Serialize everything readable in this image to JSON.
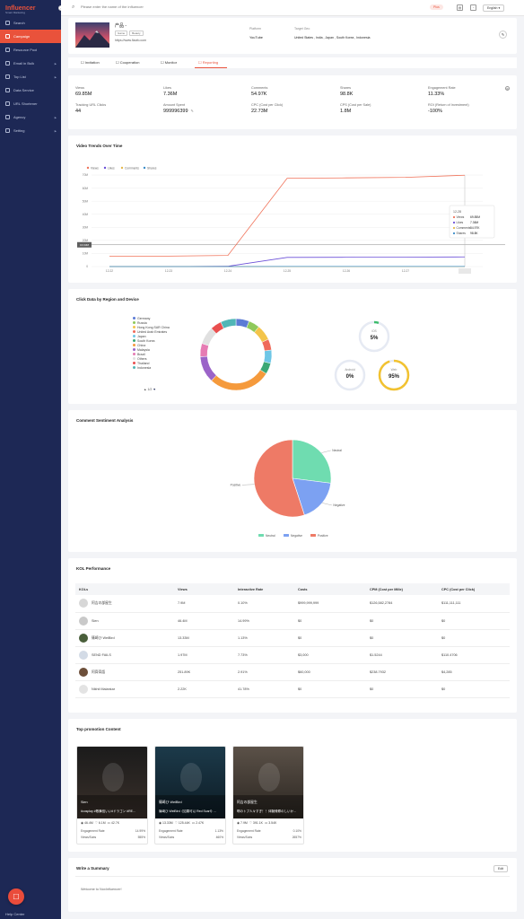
{
  "app": {
    "logo": "Influencer",
    "logo_sub": "Smart Marketing"
  },
  "sidebar": {
    "items": [
      {
        "label": "Search",
        "icon": "search-icon"
      },
      {
        "label": "Campaign",
        "icon": "megaphone-icon",
        "active": true
      },
      {
        "label": "Resource Pool",
        "icon": "heart-icon"
      },
      {
        "label": "Email in Bulk",
        "icon": "mail-icon",
        "chevron": true
      },
      {
        "label": "Top List",
        "icon": "list-icon",
        "chevron": true
      },
      {
        "label": "Data Service",
        "icon": "chart-icon"
      },
      {
        "label": "URL Shortener",
        "icon": "link-icon"
      },
      {
        "label": "Agency",
        "icon": "briefcase-icon",
        "chevron": true
      },
      {
        "label": "Setting",
        "icon": "gear-icon",
        "chevron": true
      }
    ],
    "help_center": "Help Center"
  },
  "topbar": {
    "search_placeholder": "Please enter the name of the influencer",
    "plan": "Plus",
    "lang": "English"
  },
  "product": {
    "name": "产品 -",
    "tags": [
      "Game",
      "Beauty"
    ],
    "url": "https://www.fiaofo.com",
    "platform_label": "Platform",
    "platform": "YouTube",
    "target_label": "Target Geo",
    "target": "United States ,  India ,  Japan ,  South Korea ,  Indonesia"
  },
  "tabs": [
    "Invitation",
    "Cooperation",
    "Monitor",
    "Reporting"
  ],
  "metrics": [
    {
      "label": "Views",
      "value": "69.85M"
    },
    {
      "label": "Likes",
      "value": "7.36M"
    },
    {
      "label": "Comments",
      "value": "54.97K"
    },
    {
      "label": "Shares",
      "value": "98.8K"
    },
    {
      "label": "Engagement Rate",
      "value": "11.33%"
    },
    {
      "label": "Tracking URL Clicks",
      "value": "44"
    },
    {
      "label": "Amount Spent",
      "value": "999996399"
    },
    {
      "label": "CPC (Cost per Click)",
      "value": "22.73M"
    },
    {
      "label": "CPS (Cost per Sale)",
      "value": "1.8M"
    },
    {
      "label": "ROI (Return of Investment)",
      "value": "-100%"
    }
  ],
  "trend": {
    "title": "Video Trends Over Time",
    "legend": [
      "Views",
      "Likes",
      "Comments",
      "Shares"
    ],
    "y_ticks": [
      "70M",
      "60M",
      "50M",
      "40M",
      "30M",
      "20M",
      "10M",
      "0"
    ],
    "x_ticks": [
      "12-22",
      "12-23",
      "12-24",
      "12-25",
      "12-26",
      "12-27",
      "12-28"
    ],
    "marker": "16.63M",
    "tooltip": {
      "date": "12-28",
      "rows": [
        {
          "label": "Views",
          "value": "69.85M"
        },
        {
          "label": "Likes",
          "value": "7.36M"
        },
        {
          "label": "Comments",
          "value": "54.97K"
        },
        {
          "label": "Shares",
          "value": "98.8K"
        }
      ]
    },
    "colors": {
      "Views": "#f0735a",
      "Likes": "#6b4fd8",
      "Comments": "#e4b84a",
      "Shares": "#3a8cc8"
    }
  },
  "chart_data": {
    "type": "line",
    "x": [
      "12-22",
      "12-23",
      "12-24",
      "12-25",
      "12-26",
      "12-27",
      "12-28"
    ],
    "ylim": [
      0,
      70000000
    ],
    "series": [
      {
        "name": "Views",
        "values": [
          8000000,
          8000000,
          8500000,
          67500000,
          67800000,
          68200000,
          69850000
        ]
      },
      {
        "name": "Likes",
        "values": [
          0,
          0,
          200000,
          7000000,
          7100000,
          7200000,
          7360000
        ]
      },
      {
        "name": "Comments",
        "values": [
          0,
          0,
          1000,
          50000,
          52000,
          53000,
          54970
        ]
      },
      {
        "name": "Shares",
        "values": [
          0,
          0,
          2000,
          90000,
          94000,
          96000,
          98800
        ]
      }
    ]
  },
  "region": {
    "title": "Click Data by Region and Device",
    "countries": [
      "Germany",
      "Russia",
      "Hong Kong SAR China",
      "United Arab Emirates",
      "Japan",
      "South Korea",
      "China",
      "Malaysia",
      "Brazil",
      "Others",
      "Thailand",
      "Indonesia"
    ],
    "page": "1/2",
    "colors": [
      "#5b7bd5",
      "#8fc95a",
      "#f3c44a",
      "#ef6a5a",
      "#6ec6e6",
      "#3aa875",
      "#f59a3c",
      "#9b63c8",
      "#e67bb3",
      "#e0e0e0",
      "#e94f4f",
      "#50b6b6"
    ],
    "donut": [
      6,
      5,
      7,
      5,
      6,
      5,
      28,
      12,
      6,
      8,
      5,
      7
    ],
    "devices": [
      {
        "name": "iOS",
        "value": "5%",
        "pct": 5,
        "color": "#3cbc6c"
      },
      {
        "name": "Android",
        "value": "0%",
        "pct": 0,
        "color": "#3a6fd0"
      },
      {
        "name": "Web",
        "value": "95%",
        "pct": 95,
        "color": "#f2c230"
      }
    ]
  },
  "sentiment": {
    "title": "Comment Sentiment Analysis",
    "slices": [
      {
        "label": "Neutral",
        "value": 27,
        "color": "#6fdcb0"
      },
      {
        "label": "Negative",
        "value": 18,
        "color": "#7ca1f2"
      },
      {
        "label": "Positive",
        "value": 55,
        "color": "#ee7a66"
      }
    ]
  },
  "kol": {
    "title": "KOL Performance",
    "headers": [
      "KOLs",
      "Views",
      "Interactive Rate",
      "Costs",
      "CPM (Cost per Mille)",
      "CPC (Cost per Click)"
    ],
    "rows": [
      [
        "阿吉の部屋生",
        "7.9M",
        "0.10%",
        "$999,999,999",
        "$126,582,2784",
        "$111,111,111"
      ],
      [
        "Sien",
        "46.4M",
        "14.99%",
        "$0",
        "$0",
        "$0"
      ],
      [
        "篠崎ひ WeiBird",
        "13.33M",
        "1.13%",
        "$0",
        "$0",
        "$0"
      ],
      [
        "SEND FAILS",
        "1.97M",
        "7.73%",
        "$3,000",
        "$1.5244",
        "$110.4706"
      ],
      [
        "阿齊齊語",
        "251.89K",
        "2.91%",
        "$60,000",
        "$238.7932",
        "$4,285"
      ],
      [
        "Nikhil Malankar",
        "2.22K",
        "41.78%",
        "$0",
        "$0",
        "$0"
      ]
    ]
  },
  "promo": {
    "title": "Top promotion Content",
    "items": [
      {
        "name": "Sien",
        "caption": "#cosplay #歌舞伎いい#ドラゴン #RE...",
        "views": "46.4M",
        "likes": "6.1M",
        "comments": "42.7K",
        "er": "14.99%",
        "vs": "555%"
      },
      {
        "name": "篠崎ひ WeiBird",
        "caption": "篠崎ひ WeiBird《如果可以 Red Scarf》...",
        "views": "13.33M",
        "likes": "125.44K",
        "comments": "2.47K",
        "er": "1.13%",
        "vs": "460%"
      },
      {
        "name": "阿吉の部屋生",
        "caption": "啊のトプ人々すぎ！！体験帰郷のしいか...",
        "views": "7.9M",
        "likes": "391.1K",
        "comments": "3.54K",
        "er": "0.10%",
        "vs": "2657%"
      }
    ],
    "er_label": "Engagement Rate",
    "vs_label": "Views/Subs"
  },
  "summary": {
    "title": "Write a Summary",
    "edit": "Edit",
    "placeholder": "Welcome to NoxInfluencer!"
  }
}
